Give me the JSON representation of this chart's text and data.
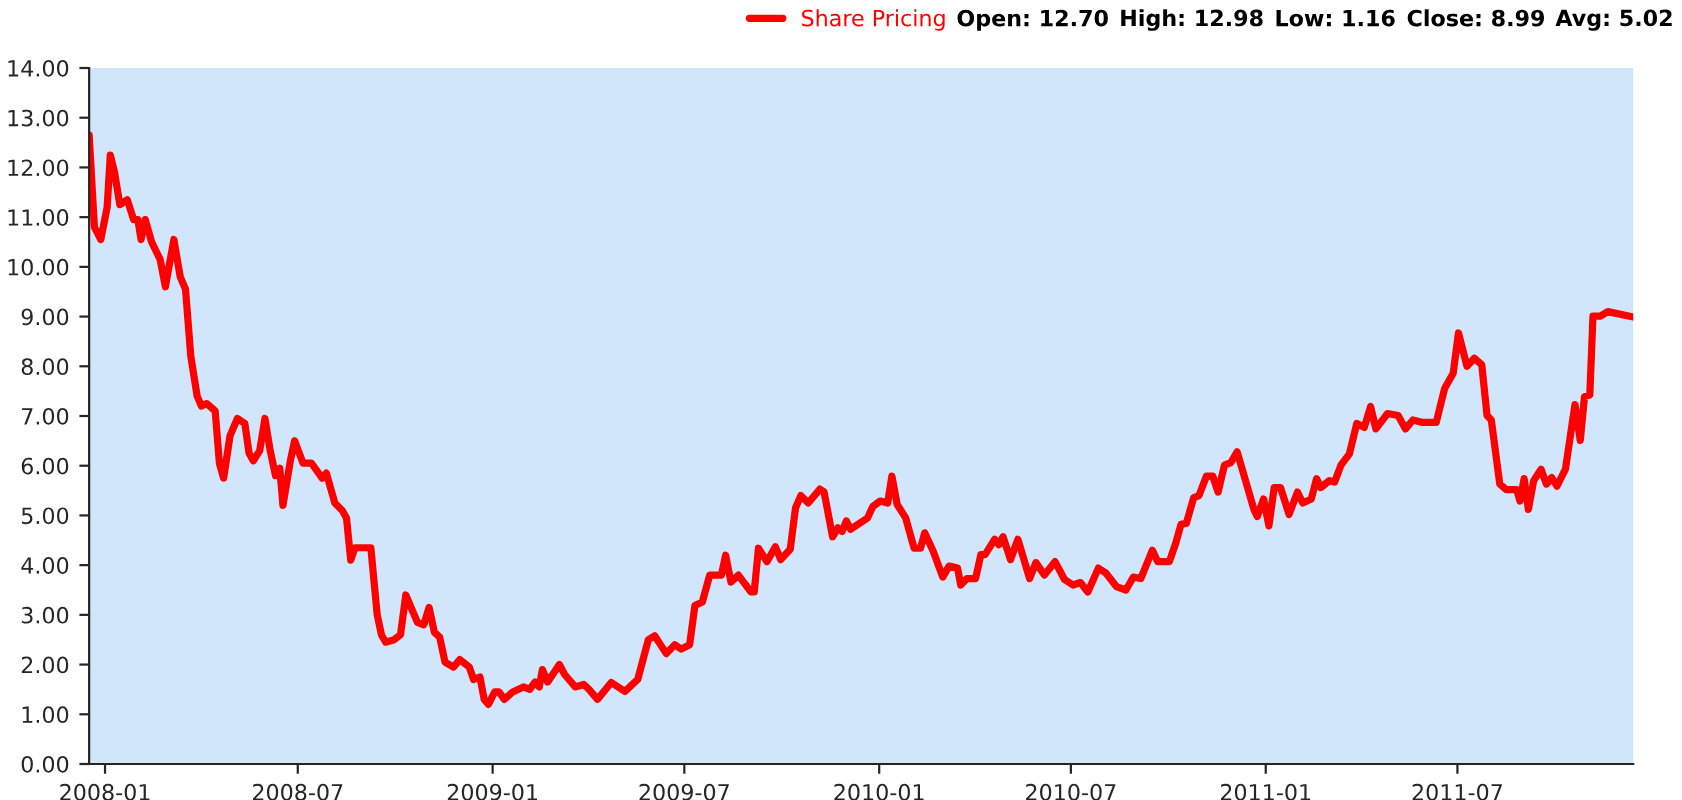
{
  "chart_data": {
    "type": "line",
    "annotations": [
      "Open: 12.70",
      "High: 12.98",
      "Low: 1.16",
      "Close: 8.99",
      "Avg: 5.02"
    ],
    "series": [
      {
        "name": "Share Pricing",
        "color": "#ff0000",
        "x": [
          "2007-12-17",
          "2007-12-22",
          "2007-12-28",
          "2008-01-03",
          "2008-01-06",
          "2008-01-10",
          "2008-01-15",
          "2008-01-22",
          "2008-01-28",
          "2008-02-01",
          "2008-02-04",
          "2008-02-08",
          "2008-02-14",
          "2008-02-22",
          "2008-02-27",
          "2008-03-06",
          "2008-03-12",
          "2008-03-17",
          "2008-03-22",
          "2008-03-28",
          "2008-04-01",
          "2008-04-06",
          "2008-04-14",
          "2008-04-18",
          "2008-04-22",
          "2008-04-28",
          "2008-05-05",
          "2008-05-12",
          "2008-05-16",
          "2008-05-20",
          "2008-05-26",
          "2008-05-31",
          "2008-06-05",
          "2008-06-10",
          "2008-06-14",
          "2008-06-17",
          "2008-06-24",
          "2008-06-28",
          "2008-07-06",
          "2008-07-14",
          "2008-07-24",
          "2008-07-28",
          "2008-08-05",
          "2008-08-12",
          "2008-08-16",
          "2008-08-20",
          "2008-08-24",
          "2008-09-08",
          "2008-09-14",
          "2008-09-18",
          "2008-09-22",
          "2008-09-30",
          "2008-10-06",
          "2008-10-11",
          "2008-10-22",
          "2008-10-28",
          "2008-11-02",
          "2008-11-07",
          "2008-11-12",
          "2008-11-17",
          "2008-11-25",
          "2008-12-01",
          "2008-12-10",
          "2008-12-14",
          "2008-12-20",
          "2008-12-24",
          "2008-12-28",
          "2009-01-03",
          "2009-01-07",
          "2009-01-12",
          "2009-01-20",
          "2009-01-30",
          "2009-02-05",
          "2009-02-10",
          "2009-02-14",
          "2009-02-17",
          "2009-02-22",
          "2009-03-05",
          "2009-03-10",
          "2009-03-20",
          "2009-03-28",
          "2009-04-02",
          "2009-04-10",
          "2009-04-23",
          "2009-05-06",
          "2009-05-18",
          "2009-05-28",
          "2009-06-03",
          "2009-06-14",
          "2009-06-22",
          "2009-06-28",
          "2009-07-06",
          "2009-07-11",
          "2009-07-18",
          "2009-07-25",
          "2009-08-05",
          "2009-08-09",
          "2009-08-14",
          "2009-08-21",
          "2009-09-02",
          "2009-09-05",
          "2009-09-09",
          "2009-09-17",
          "2009-09-25",
          "2009-09-30",
          "2009-10-09",
          "2009-10-14",
          "2009-10-19",
          "2009-10-26",
          "2009-11-06",
          "2009-11-10",
          "2009-11-18",
          "2009-11-23",
          "2009-11-27",
          "2009-12-01",
          "2009-12-05",
          "2009-12-21",
          "2009-12-26",
          "2010-01-02",
          "2010-01-09",
          "2010-01-13",
          "2010-01-18",
          "2010-01-26",
          "2010-02-03",
          "2010-02-09",
          "2010-02-13",
          "2010-02-21",
          "2010-03-02",
          "2010-03-08",
          "2010-03-16",
          "2010-03-19",
          "2010-03-25",
          "2010-04-02",
          "2010-04-07",
          "2010-04-11",
          "2010-04-20",
          "2010-04-24",
          "2010-04-28",
          "2010-05-05",
          "2010-05-12",
          "2010-05-23",
          "2010-05-29",
          "2010-06-06",
          "2010-06-16",
          "2010-06-25",
          "2010-07-03",
          "2010-07-10",
          "2010-07-17",
          "2010-07-27",
          "2010-08-03",
          "2010-08-13",
          "2010-08-22",
          "2010-08-29",
          "2010-09-05",
          "2010-09-16",
          "2010-09-21",
          "2010-10-02",
          "2010-10-08",
          "2010-10-13",
          "2010-10-18",
          "2010-10-25",
          "2010-10-30",
          "2010-11-06",
          "2010-11-12",
          "2010-11-17",
          "2010-11-23",
          "2010-11-29",
          "2010-12-05",
          "2010-12-21",
          "2010-12-24",
          "2010-12-30",
          "2011-01-04",
          "2011-01-09",
          "2011-01-15",
          "2011-01-23",
          "2011-01-31",
          "2011-02-05",
          "2011-02-13",
          "2011-02-18",
          "2011-02-22",
          "2011-03-02",
          "2011-03-07",
          "2011-03-13",
          "2011-03-21",
          "2011-03-28",
          "2011-04-04",
          "2011-04-10",
          "2011-04-15",
          "2011-04-26",
          "2011-05-06",
          "2011-05-13",
          "2011-05-20",
          "2011-05-29",
          "2011-06-11",
          "2011-06-19",
          "2011-06-27",
          "2011-07-02",
          "2011-07-10",
          "2011-07-17",
          "2011-07-24",
          "2011-07-29",
          "2011-08-02",
          "2011-08-10",
          "2011-08-16",
          "2011-08-26",
          "2011-08-29",
          "2011-09-02",
          "2011-09-06",
          "2011-09-11",
          "2011-09-18",
          "2011-09-23",
          "2011-09-28",
          "2011-10-03",
          "2011-10-11",
          "2011-10-20",
          "2011-10-25",
          "2011-10-29",
          "2011-11-03",
          "2011-11-06",
          "2011-11-13",
          "2011-11-20",
          "2011-12-14"
        ],
        "values": [
          12.65,
          10.8,
          10.55,
          11.2,
          12.25,
          11.9,
          11.25,
          11.35,
          10.95,
          10.95,
          10.55,
          10.95,
          10.5,
          10.15,
          9.6,
          10.55,
          9.8,
          9.55,
          8.2,
          7.4,
          7.2,
          7.25,
          7.1,
          6.05,
          5.75,
          6.6,
          6.95,
          6.85,
          6.25,
          6.1,
          6.3,
          6.95,
          6.3,
          5.8,
          5.95,
          5.2,
          6.1,
          6.5,
          6.05,
          6.05,
          5.75,
          5.85,
          5.25,
          5.1,
          4.95,
          4.1,
          4.35,
          4.35,
          3.0,
          2.6,
          2.45,
          2.5,
          2.6,
          3.4,
          2.85,
          2.8,
          3.15,
          2.65,
          2.55,
          2.05,
          1.95,
          2.1,
          1.95,
          1.7,
          1.75,
          1.3,
          1.2,
          1.45,
          1.45,
          1.3,
          1.45,
          1.55,
          1.5,
          1.65,
          1.55,
          1.9,
          1.65,
          2.0,
          1.8,
          1.55,
          1.6,
          1.5,
          1.3,
          1.64,
          1.46,
          1.7,
          2.5,
          2.58,
          2.22,
          2.4,
          2.31,
          2.4,
          3.19,
          3.26,
          3.8,
          3.8,
          4.2,
          3.66,
          3.8,
          3.46,
          3.46,
          4.34,
          4.07,
          4.37,
          4.11,
          4.32,
          5.15,
          5.4,
          5.25,
          5.53,
          5.47,
          4.57,
          4.75,
          4.68,
          4.89,
          4.72,
          4.95,
          5.18,
          5.29,
          5.25,
          5.79,
          5.22,
          4.95,
          4.34,
          4.34,
          4.65,
          4.28,
          3.76,
          3.98,
          3.94,
          3.6,
          3.73,
          3.73,
          4.21,
          4.21,
          4.52,
          4.41,
          4.57,
          4.11,
          4.52,
          3.73,
          4.05,
          3.8,
          4.07,
          3.71,
          3.6,
          3.65,
          3.46,
          3.94,
          3.84,
          3.57,
          3.5,
          3.76,
          3.73,
          4.3,
          4.07,
          4.07,
          4.44,
          4.82,
          4.84,
          5.36,
          5.4,
          5.79,
          5.79,
          5.47,
          6.01,
          6.06,
          6.28,
          5.11,
          4.98,
          5.33,
          4.79,
          5.56,
          5.56,
          5.02,
          5.47,
          5.25,
          5.33,
          5.74,
          5.56,
          5.7,
          5.67,
          6.01,
          6.24,
          6.85,
          6.77,
          7.19,
          6.74,
          7.05,
          7.01,
          6.74,
          6.92,
          6.87,
          6.87,
          7.56,
          7.86,
          8.67,
          8.0,
          8.16,
          8.03,
          7.01,
          6.92,
          5.63,
          5.52,
          5.52,
          5.29,
          5.74,
          5.12,
          5.7,
          5.93,
          5.63,
          5.76,
          5.59,
          5.93,
          7.23,
          6.51,
          7.39,
          7.42,
          9.01,
          9.01,
          9.1,
          8.99
        ]
      }
    ],
    "xlim": [
      "2007-12-17",
      "2011-12-14"
    ],
    "xticks": [
      "2008-01",
      "2008-07",
      "2009-01",
      "2009-07",
      "2010-01",
      "2010-07",
      "2011-01",
      "2011-07"
    ],
    "ylim": [
      0,
      14
    ],
    "yticks": [
      {
        "value": 0,
        "label": "0.00"
      },
      {
        "value": 1,
        "label": "1.00"
      },
      {
        "value": 2,
        "label": "2.00"
      },
      {
        "value": 3,
        "label": "3.00"
      },
      {
        "value": 4,
        "label": "4.00"
      },
      {
        "value": 5,
        "label": "5.00"
      },
      {
        "value": 6,
        "label": "6.00"
      },
      {
        "value": 7,
        "label": "7.00"
      },
      {
        "value": 8,
        "label": "8.00"
      },
      {
        "value": 9,
        "label": "9.00"
      },
      {
        "value": 10,
        "label": "10.00"
      },
      {
        "value": 11,
        "label": "11.00"
      },
      {
        "value": 12,
        "label": "12.00"
      },
      {
        "value": 13,
        "label": "13.00"
      },
      {
        "value": 14,
        "label": "14.00"
      }
    ],
    "grid": false,
    "legend": "top right",
    "marker": "none",
    "line_style": "solid"
  }
}
